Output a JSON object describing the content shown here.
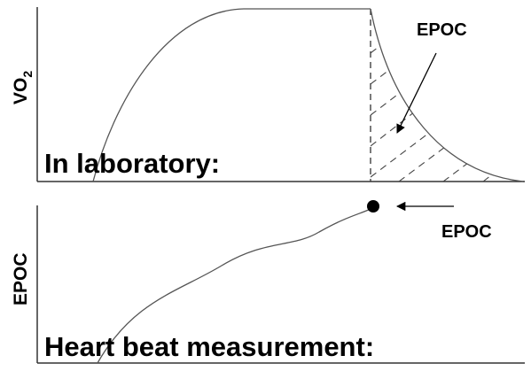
{
  "top_panel": {
    "y_label": {
      "main": "VO",
      "subscript": "2"
    },
    "caption": "In laboratory:",
    "annotation": "EPOC"
  },
  "bottom_panel": {
    "y_label": "EPOC",
    "caption": "Heart beat measurement:",
    "annotation": "EPOC"
  }
}
